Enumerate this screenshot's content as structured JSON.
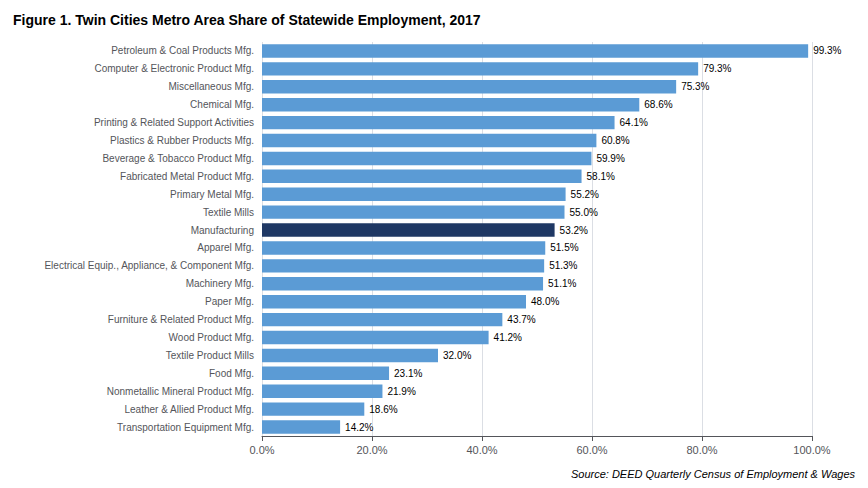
{
  "chart_data": {
    "type": "bar",
    "orientation": "horizontal",
    "title": "Figure 1. Twin Cities Metro Area Share of Statewide Employment, 2017",
    "source": "Source: DEED Quarterly Census of Employment & Wages",
    "categories": [
      "Transportation Equipment Mfg.",
      "Leather & Allied Product Mfg.",
      "Nonmetallic Mineral Product Mfg.",
      "Food Mfg.",
      "Textile Product Mills",
      "Wood Product Mfg.",
      "Furniture & Related Product Mfg.",
      "Paper Mfg.",
      "Machinery Mfg.",
      "Electrical Equip., Appliance, & Component Mfg.",
      "Apparel Mfg.",
      "Manufacturing",
      "Textile Mills",
      "Primary Metal Mfg.",
      "Fabricated Metal Product Mfg.",
      "Beverage & Tobacco Product Mfg.",
      "Plastics & Rubber Products Mfg.",
      "Printing & Related Support Activities",
      "Chemical Mfg.",
      "Miscellaneous Mfg.",
      "Computer & Electronic Product Mfg.",
      "Petroleum & Coal Products Mfg."
    ],
    "values": [
      14.2,
      18.6,
      21.9,
      23.1,
      32.0,
      41.2,
      43.7,
      48.0,
      51.1,
      51.3,
      51.5,
      53.2,
      55.0,
      55.2,
      58.1,
      59.9,
      60.8,
      64.1,
      68.6,
      75.3,
      79.3,
      99.3
    ],
    "value_labels": [
      "14.2%",
      "18.6%",
      "21.9%",
      "23.1%",
      "32.0%",
      "41.2%",
      "43.7%",
      "48.0%",
      "51.1%",
      "51.3%",
      "51.5%",
      "53.2%",
      "55.0%",
      "55.2%",
      "58.1%",
      "59.9%",
      "60.8%",
      "64.1%",
      "68.6%",
      "75.3%",
      "79.3%",
      "99.3%"
    ],
    "data_labels": true,
    "colors": [
      "#5B9BD5",
      "#5B9BD5",
      "#5B9BD5",
      "#5B9BD5",
      "#5B9BD5",
      "#5B9BD5",
      "#5B9BD5",
      "#5B9BD5",
      "#5B9BD5",
      "#5B9BD5",
      "#5B9BD5",
      "#1F3864",
      "#5B9BD5",
      "#5B9BD5",
      "#5B9BD5",
      "#5B9BD5",
      "#5B9BD5",
      "#5B9BD5",
      "#5B9BD5",
      "#5B9BD5",
      "#5B9BD5",
      "#5B9BD5"
    ],
    "xlim": [
      0,
      100
    ],
    "xticks": [
      {
        "value": 0,
        "label": "0.0%"
      },
      {
        "value": 20,
        "label": "20.0%"
      },
      {
        "value": 40,
        "label": "40.0%"
      },
      {
        "value": 60,
        "label": "60.0%"
      },
      {
        "value": 80,
        "label": "80.0%"
      },
      {
        "value": 100,
        "label": "100.0%"
      }
    ],
    "grid": true
  }
}
